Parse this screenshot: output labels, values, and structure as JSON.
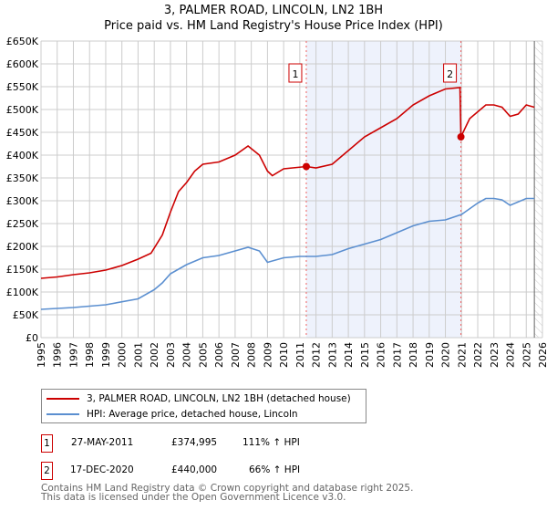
{
  "header": {
    "title1": "3, PALMER ROAD, LINCOLN, LN2 1BH",
    "title2": "Price paid vs. HM Land Registry's House Price Index (HPI)"
  },
  "chart_data": {
    "type": "line",
    "title": "3, PALMER ROAD, LINCOLN, LN2 1BH — Price paid vs. HM Land Registry's House Price Index (HPI)",
    "xlim": [
      1995,
      2026
    ],
    "ylim": [
      0,
      650000
    ],
    "x_ticks": [
      "1995",
      "1996",
      "1997",
      "1998",
      "1999",
      "2000",
      "2001",
      "2002",
      "2003",
      "2004",
      "2005",
      "2006",
      "2007",
      "2008",
      "2009",
      "2010",
      "2011",
      "2012",
      "2013",
      "2014",
      "2015",
      "2016",
      "2017",
      "2018",
      "2019",
      "2020",
      "2021",
      "2022",
      "2023",
      "2024",
      "2025",
      "2026"
    ],
    "y_ticks": [
      {
        "v": 0,
        "l": "£0"
      },
      {
        "v": 50000,
        "l": "£50K"
      },
      {
        "v": 100000,
        "l": "£100K"
      },
      {
        "v": 150000,
        "l": "£150K"
      },
      {
        "v": 200000,
        "l": "£200K"
      },
      {
        "v": 250000,
        "l": "£250K"
      },
      {
        "v": 300000,
        "l": "£300K"
      },
      {
        "v": 350000,
        "l": "£350K"
      },
      {
        "v": 400000,
        "l": "£400K"
      },
      {
        "v": 450000,
        "l": "£450K"
      },
      {
        "v": 500000,
        "l": "£500K"
      },
      {
        "v": 550000,
        "l": "£550K"
      },
      {
        "v": 600000,
        "l": "£600K"
      },
      {
        "v": 650000,
        "l": "£650K"
      }
    ],
    "grid": true,
    "shaded_range": [
      2011.4,
      2020.96
    ],
    "hatched_from": 2025.5,
    "series": [
      {
        "name": "3, PALMER ROAD, LINCOLN, LN2 1BH (detached house)",
        "color": "#cc0000",
        "x": [
          1995,
          1996,
          1997,
          1998,
          1999,
          2000,
          2001,
          2001.8,
          2002.5,
          2003,
          2003.5,
          2004,
          2004.5,
          2005,
          2006,
          2007,
          2007.8,
          2008.5,
          2009,
          2009.3,
          2010,
          2011.4,
          2012,
          2013,
          2014,
          2015,
          2016,
          2017,
          2018,
          2019,
          2020,
          2020.9,
          2020.96,
          2021.5,
          2022,
          2022.5,
          2023,
          2023.5,
          2024,
          2024.5,
          2025,
          2025.5
        ],
        "y": [
          130000,
          133000,
          138000,
          142000,
          148000,
          158000,
          172000,
          185000,
          225000,
          275000,
          320000,
          340000,
          365000,
          380000,
          385000,
          400000,
          420000,
          400000,
          365000,
          355000,
          370000,
          374995,
          372000,
          380000,
          410000,
          440000,
          460000,
          480000,
          510000,
          530000,
          545000,
          548000,
          440000,
          480000,
          495000,
          510000,
          510000,
          505000,
          485000,
          490000,
          510000,
          505000
        ]
      },
      {
        "name": "HPI: Average price, detached house, Lincoln",
        "color": "#5b8fd0",
        "x": [
          1995,
          1997,
          1999,
          2001,
          2002,
          2002.5,
          2003,
          2004,
          2005,
          2006,
          2007,
          2007.8,
          2008.5,
          2009,
          2010,
          2011,
          2012,
          2013,
          2014,
          2015,
          2016,
          2017,
          2018,
          2019,
          2020,
          2021,
          2022,
          2022.5,
          2023,
          2023.5,
          2024,
          2025,
          2025.5
        ],
        "y": [
          62000,
          66000,
          72000,
          85000,
          105000,
          120000,
          140000,
          160000,
          175000,
          180000,
          190000,
          198000,
          190000,
          165000,
          175000,
          178000,
          178000,
          182000,
          195000,
          205000,
          215000,
          230000,
          245000,
          255000,
          258000,
          270000,
          295000,
          305000,
          305000,
          302000,
          290000,
          305000,
          305000
        ]
      }
    ],
    "markers": [
      {
        "label": "1",
        "x": 2011.4,
        "y": 374995
      },
      {
        "label": "2",
        "x": 2020.96,
        "y": 440000
      }
    ]
  },
  "legend": {
    "items": [
      "3, PALMER ROAD, LINCOLN, LN2 1BH (detached house)",
      "HPI: Average price, detached house, Lincoln"
    ]
  },
  "transactions": [
    {
      "num": "1",
      "date": "27-MAY-2011",
      "price": "£374,995",
      "hpi": "111% ↑ HPI"
    },
    {
      "num": "2",
      "date": "17-DEC-2020",
      "price": "£440,000",
      "hpi": "66% ↑ HPI"
    }
  ],
  "footer": {
    "line1": "Contains HM Land Registry data © Crown copyright and database right 2025.",
    "line2": "This data is licensed under the Open Government Licence v3.0."
  }
}
